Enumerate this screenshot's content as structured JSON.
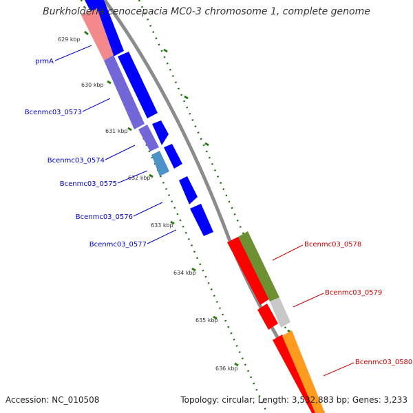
{
  "title": "Burkholderia cenocepacia MC0-3 chromosome 1, complete genome",
  "footer": {
    "accession": "Accession: NC_010508",
    "topology": "Topology: circular; Length: 3,532,883 bp; Genes: 3,233"
  },
  "colors": {
    "backbone": "#8c8c8c",
    "forward_cds": "#0000ff",
    "reverse_cds": "#ff0000",
    "ruler": "#2a7a10",
    "left_label": "#0000cc",
    "right_label": "#cc0000"
  },
  "scale_ticks": [
    "629 kbp",
    "630 kbp",
    "631 kbp",
    "632 kbp",
    "633 kbp",
    "634 kbp",
    "635 kbp",
    "636 kbp"
  ],
  "left_genes": [
    "prmA",
    "Bcenmc03_0573",
    "Bcenmc03_0574",
    "Bcenmc03_0575",
    "Bcenmc03_0576",
    "Bcenmc03_0577"
  ],
  "right_genes": [
    "Bcenmc03_0578",
    "Bcenmc03_0579",
    "Bcenmc03_0580"
  ]
}
